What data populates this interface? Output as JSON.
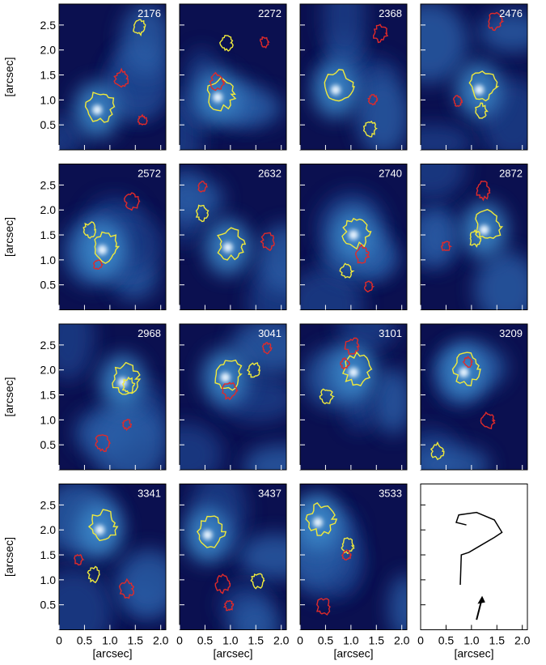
{
  "chart_data": {
    "type": "image-grid",
    "panels": [
      "2176",
      "2272",
      "2368",
      "2476",
      "2572",
      "2632",
      "2740",
      "2872",
      "2968",
      "3041",
      "3101",
      "3209",
      "3341",
      "3437",
      "3533"
    ],
    "xlabel": "[arcsec]",
    "ylabel": "[arcsec]",
    "xlim": [
      0,
      2.1
    ],
    "ylim": [
      0,
      2.92
    ],
    "xticks": [
      0,
      0.5,
      {
        "value": 1,
        "label": "1.0"
      },
      1.5,
      {
        "value": 2,
        "label": "2.0"
      }
    ],
    "yticks": [
      0.5,
      {
        "value": 1,
        "label": "1.0"
      },
      1.5,
      {
        "value": 2,
        "label": "2.0"
      },
      2.5
    ]
  }
}
